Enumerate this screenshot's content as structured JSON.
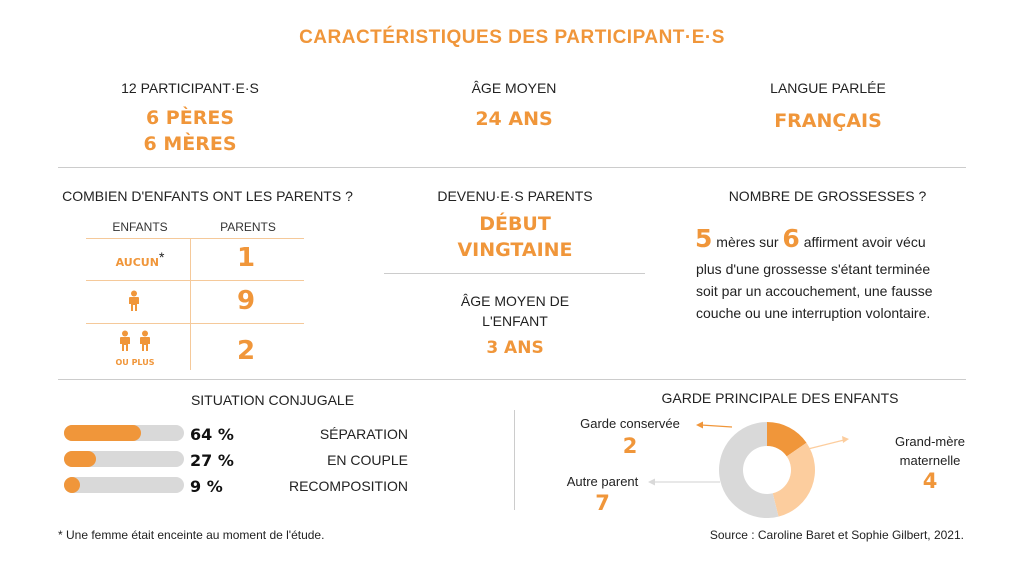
{
  "title": "CARACTÉRISTIQUES DES PARTICIPANT·E·S",
  "participants": {
    "label": "12 PARTICIPANT·E·S",
    "line1": "6 PÈRES",
    "line2": "6 MÈRES"
  },
  "age": {
    "label": "ÂGE MOYEN",
    "value": "24 ANS"
  },
  "langue": {
    "label": "LANGUE PARLÉE",
    "value": "FRANÇAIS"
  },
  "enfants": {
    "label": "COMBIEN D'ENFANTS ONT LES PARENTS ?",
    "col_enfants": "ENFANTS",
    "col_parents": "PARENTS",
    "rows": [
      {
        "label": "AUCUN",
        "mark": "*",
        "value": "1"
      },
      {
        "label": "",
        "value": "9"
      },
      {
        "label": "OU PLUS",
        "value": "2"
      }
    ]
  },
  "devenu": {
    "label": "DEVENU·E·S PARENTS",
    "line1": "DÉBUT",
    "line2": "VINGTAINE"
  },
  "age_enfant": {
    "label1": "ÂGE MOYEN DE",
    "label2": "L'ENFANT",
    "value": "3 ANS"
  },
  "grossesses": {
    "label": "NOMBRE DE GROSSESSES ?",
    "n1": "5",
    "t1": "mères sur",
    "n2": "6",
    "t2": "affirment avoir vécu",
    "line2": "plus d'une grossesse s'étant terminée",
    "line3": "soit par un accouchement, une fausse",
    "line4": "couche ou une interruption volontaire."
  },
  "conjugale": {
    "label": "SITUATION CONJUGALE",
    "items": [
      {
        "pct": "64 %",
        "value": 64,
        "label": "SÉPARATION"
      },
      {
        "pct": "27 %",
        "value": 27,
        "label": "EN COUPLE"
      },
      {
        "pct": "9 %",
        "value": 9,
        "label": "RECOMPOSITION"
      }
    ]
  },
  "chart_data": {
    "type": "pie",
    "title": "GARDE PRINCIPALE DES ENFANTS",
    "categories": [
      "Garde conservée",
      "Grand-mère maternelle",
      "Autre parent"
    ],
    "values": [
      2,
      4,
      7
    ],
    "colors": [
      "#f0963a",
      "#fccd9e",
      "#d9d9d9"
    ]
  },
  "garde": {
    "title": "GARDE PRINCIPALE DES ENFANTS",
    "conservee_label": "Garde conservée",
    "conservee_value": "2",
    "gm_label1": "Grand-mère",
    "gm_label2": "maternelle",
    "gm_value": "4",
    "autre_label": "Autre parent",
    "autre_value": "7"
  },
  "footnote": "* Une femme était enceinte au moment de l'étude.",
  "source": "Source : Caroline Baret et Sophie Gilbert, 2021.",
  "colors": {
    "accent": "#f0963a",
    "light": "#fccd9e",
    "grey": "#d9d9d9"
  }
}
